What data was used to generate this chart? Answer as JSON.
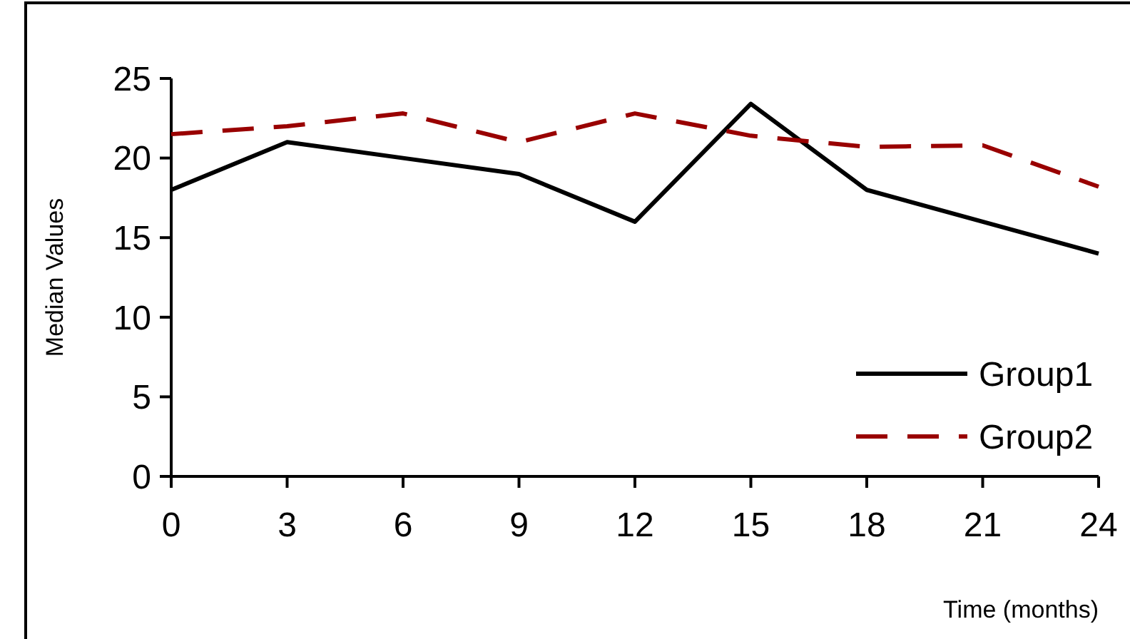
{
  "chart_data": {
    "type": "line",
    "xlabel": "Time (months)",
    "ylabel": "Median Values",
    "x": [
      0,
      3,
      6,
      9,
      12,
      15,
      18,
      21,
      24
    ],
    "series": [
      {
        "name": "Group1",
        "color": "#000000",
        "line_style": "solid",
        "values": [
          18,
          21,
          20,
          19,
          16,
          23.4,
          18,
          16,
          14
        ]
      },
      {
        "name": "Group2",
        "color": "#990000",
        "line_style": "dashed",
        "values": [
          21.5,
          22,
          22.8,
          21,
          22.8,
          21.4,
          20.7,
          20.8,
          18.2
        ]
      }
    ],
    "xlim": [
      0,
      24
    ],
    "xticks": [
      0,
      3,
      6,
      9,
      12,
      15,
      18,
      21,
      24
    ],
    "ylim": [
      0,
      25
    ],
    "yticks": [
      0,
      5,
      10,
      15,
      20,
      25
    ],
    "grid": false,
    "legend": "bottom right",
    "marker": "none"
  }
}
